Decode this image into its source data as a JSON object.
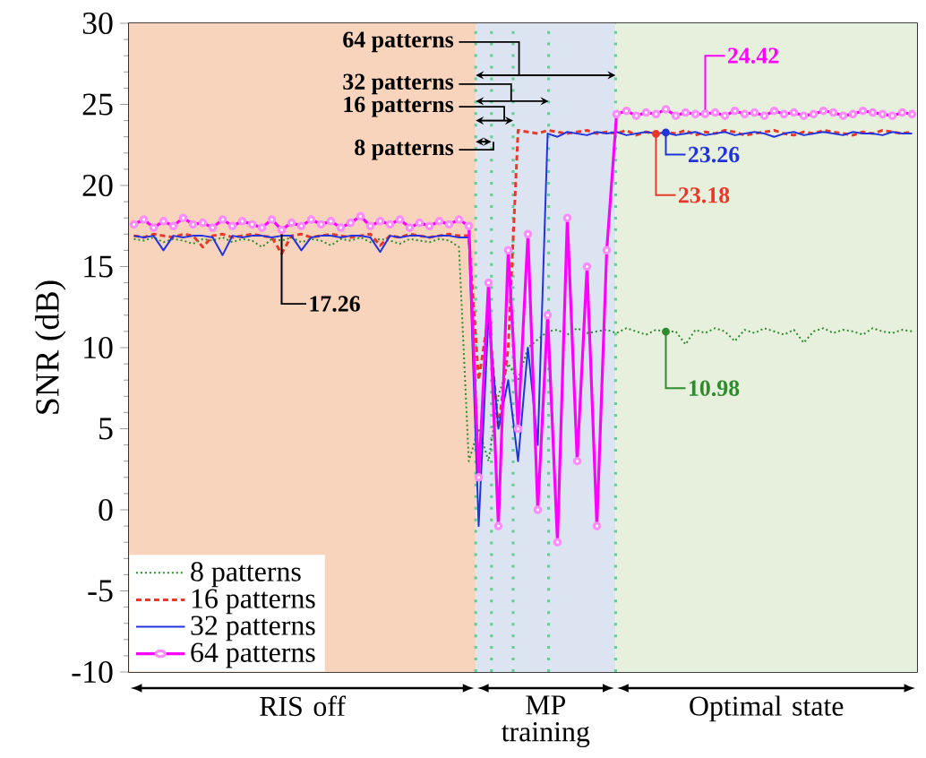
{
  "chart_data": {
    "type": "line",
    "ylabel": "SNR (dB)",
    "categories": [
      null,
      null,
      null,
      null,
      null,
      null,
      null,
      null,
      null,
      null,
      null,
      null,
      null,
      null,
      null,
      null,
      null,
      null,
      null,
      null,
      null,
      null,
      null,
      null,
      null,
      null,
      null,
      null,
      null,
      null,
      null,
      null,
      null,
      null,
      null,
      null,
      null,
      null,
      null,
      null,
      null,
      null,
      null,
      null,
      null,
      null,
      null,
      null,
      null,
      null,
      null,
      null,
      null,
      null,
      null,
      null,
      null,
      null,
      null,
      null,
      null,
      null,
      null,
      null,
      null,
      null,
      null,
      null,
      null,
      null,
      null,
      null,
      null,
      null,
      null,
      null,
      null,
      null,
      null,
      null
    ],
    "ylim": [
      -10,
      30
    ],
    "yticks": [
      -10,
      -5,
      0,
      5,
      10,
      15,
      20,
      25,
      30
    ],
    "tick_labels": "y",
    "grid": false,
    "legend": "bottom left",
    "series": [
      {
        "name": "8 patterns",
        "color": "#2e8b2e",
        "line_style": "dotted",
        "marker": "none",
        "values": [
          16.7,
          16.6,
          16.8,
          16.5,
          16.7,
          16.6,
          16.4,
          16.7,
          16.6,
          16.8,
          16.5,
          16.7,
          16.6,
          16.2,
          16.7,
          16.6,
          16.8,
          16.5,
          16.7,
          16.6,
          16.3,
          16.7,
          16.6,
          16.8,
          16.5,
          16.7,
          16.6,
          16.4,
          16.7,
          16.6,
          16.5,
          16.7,
          16.6,
          16.2,
          3,
          5,
          3,
          7,
          9,
          8,
          10,
          10.5,
          11,
          11.1,
          10.8,
          11.2,
          10.9,
          11.0,
          11.1,
          10.9,
          11.2,
          11.0,
          10.8,
          11.1,
          10.98,
          11.0,
          10.2,
          11.1,
          10.9,
          11.2,
          11.0,
          10.4,
          11.1,
          10.9,
          11.2,
          11.0,
          10.8,
          11.1,
          10.3,
          11.0,
          11.2,
          10.9,
          11.1,
          11.0,
          10.8,
          11.2,
          11.0,
          10.9,
          11.1,
          11.0
        ]
      },
      {
        "name": "16 patterns",
        "color": "#e8382a",
        "line_style": "dashed",
        "marker": "none",
        "values": [
          16.9,
          16.8,
          17.0,
          16.9,
          16.8,
          17.0,
          16.9,
          16.2,
          16.9,
          17.0,
          16.8,
          16.9,
          17.0,
          16.9,
          16.8,
          15.8,
          16.9,
          17.0,
          16.8,
          16.9,
          17.0,
          16.9,
          16.8,
          16.9,
          17.0,
          16.3,
          16.9,
          16.8,
          17.0,
          16.9,
          16.8,
          16.9,
          17.0,
          16.9,
          16.9,
          8,
          12,
          5,
          10,
          23.4,
          23.3,
          23.2,
          23.4,
          23.3,
          23.2,
          23.3,
          23.4,
          23.2,
          23.3,
          23.2,
          23.4,
          23.1,
          23.3,
          23.18,
          23.3,
          23.2,
          23.4,
          23.1,
          23.3,
          23.2,
          23.4,
          23.3,
          23.1,
          23.2,
          23.3,
          23.4,
          23.2,
          23.1,
          23.3,
          23.2,
          23.4,
          23.3,
          23.2,
          23.1,
          23.3,
          23.2,
          23.4,
          23.3,
          23.2,
          23.3
        ]
      },
      {
        "name": "32 patterns",
        "color": "#2233dd",
        "line_style": "solid",
        "marker": "none",
        "values": [
          16.9,
          16.8,
          16.9,
          16.0,
          16.9,
          16.8,
          16.9,
          16.9,
          16.8,
          15.7,
          16.9,
          16.8,
          16.9,
          16.9,
          16.8,
          16.9,
          16.9,
          16.0,
          16.8,
          16.9,
          16.9,
          16.8,
          16.9,
          16.9,
          16.8,
          15.9,
          16.9,
          16.8,
          16.9,
          16.9,
          16.8,
          16.9,
          16.9,
          16.8,
          16.8,
          -1,
          12,
          5,
          8,
          3,
          10,
          4,
          23.2,
          23.0,
          23.3,
          23.2,
          23.1,
          23.3,
          23.2,
          23.3,
          23.1,
          23.2,
          23.3,
          23.2,
          23.26,
          23.1,
          23.2,
          23.3,
          23.1,
          23.2,
          23.3,
          23.1,
          23.2,
          23.3,
          23.2,
          23.0,
          23.2,
          23.3,
          23.1,
          23.2,
          23.3,
          23.2,
          23.1,
          23.3,
          23.2,
          23.2,
          23.1,
          23.3,
          23.2,
          23.2
        ]
      },
      {
        "name": "64 patterns",
        "color": "#ff00ff",
        "line_style": "solid",
        "marker": "circle",
        "values": [
          17.6,
          17.9,
          17.4,
          17.8,
          17.5,
          18.0,
          17.6,
          17.7,
          17.4,
          17.9,
          17.5,
          17.8,
          17.6,
          17.4,
          17.9,
          17.26,
          17.7,
          17.5,
          17.9,
          17.6,
          17.8,
          17.4,
          17.7,
          18.1,
          17.5,
          17.8,
          17.6,
          17.9,
          17.4,
          17.7,
          17.5,
          17.8,
          17.6,
          17.9,
          17.5,
          2,
          14,
          -1,
          16,
          5,
          17,
          0,
          12,
          -2,
          18,
          3,
          15,
          -1,
          16,
          24.4,
          24.6,
          24.3,
          24.5,
          24.4,
          24.7,
          24.3,
          24.5,
          24.4,
          24.42,
          24.5,
          24.3,
          24.6,
          24.4,
          24.5,
          24.3,
          24.6,
          24.4,
          24.5,
          24.3,
          24.4,
          24.6,
          24.5,
          24.3,
          24.4,
          24.6,
          24.5,
          24.4,
          24.3,
          24.5,
          24.4
        ]
      }
    ],
    "annotations": [
      {
        "text": "24.42",
        "y": 24.42
      },
      {
        "text": "23.26",
        "y": 23.26
      },
      {
        "text": "23.18",
        "y": 23.18
      },
      {
        "text": "10.98",
        "y": 10.98
      },
      {
        "text": "17.26",
        "y": 17.26
      },
      "64 patterns",
      "32 patterns",
      "16 patterns",
      "8 patterns",
      "RIS off",
      "MP training",
      "Optimal state"
    ]
  }
}
